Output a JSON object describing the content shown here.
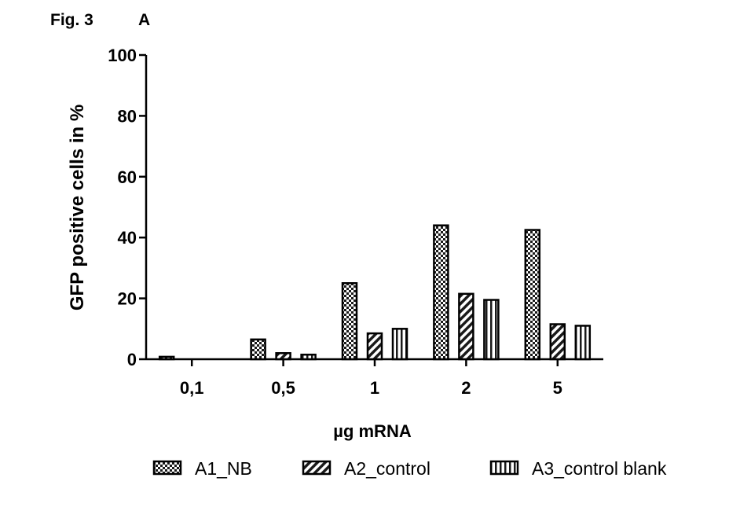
{
  "figure": {
    "label": "Fig. 3",
    "panel": "A"
  },
  "chart_data": {
    "type": "bar",
    "xlabel": "µg mRNA",
    "ylabel": "GFP positive cells in %",
    "ylim": [
      0,
      100
    ],
    "yticks": [
      0,
      20,
      40,
      60,
      80,
      100
    ],
    "categories": [
      "0,1",
      "0,5",
      "1",
      "2",
      "5"
    ],
    "series": [
      {
        "name": "A1_NB",
        "values": [
          0.8,
          6.5,
          25,
          44,
          42.5
        ],
        "pattern": "checker"
      },
      {
        "name": "A2_control",
        "values": [
          0,
          2,
          8.5,
          21.5,
          11.5
        ],
        "pattern": "diagonal"
      },
      {
        "name": "A3_control blank",
        "values": [
          0,
          1.5,
          10,
          19.5,
          11
        ],
        "pattern": "vertical"
      }
    ],
    "legend_position": "bottom",
    "grid": false
  }
}
